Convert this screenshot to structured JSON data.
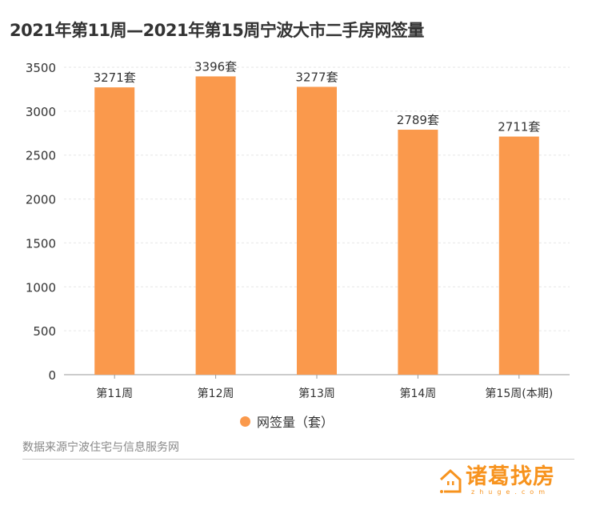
{
  "chart_data": {
    "type": "bar",
    "title": "2021年第11周—2021年第15周宁波大市二手房网签量",
    "categories": [
      "第11周",
      "第12周",
      "第13周",
      "第14周",
      "第15周(本期)"
    ],
    "series": [
      {
        "name": "网签量（套）",
        "values": [
          3271,
          3396,
          3277,
          2789,
          2711
        ]
      }
    ],
    "data_labels": [
      "3271套",
      "3396套",
      "3277套",
      "2789套",
      "2711套"
    ],
    "yticks": [
      0,
      500,
      1000,
      1500,
      2000,
      2500,
      3000,
      3500
    ],
    "ylim": [
      0,
      3500
    ],
    "grid": true,
    "legend": "bottom-center",
    "color": "#fa994c"
  },
  "source": "数据来源宁波住宅与信息服务网",
  "logo": {
    "name": "诸葛找房",
    "sub": "zhuge.com"
  }
}
